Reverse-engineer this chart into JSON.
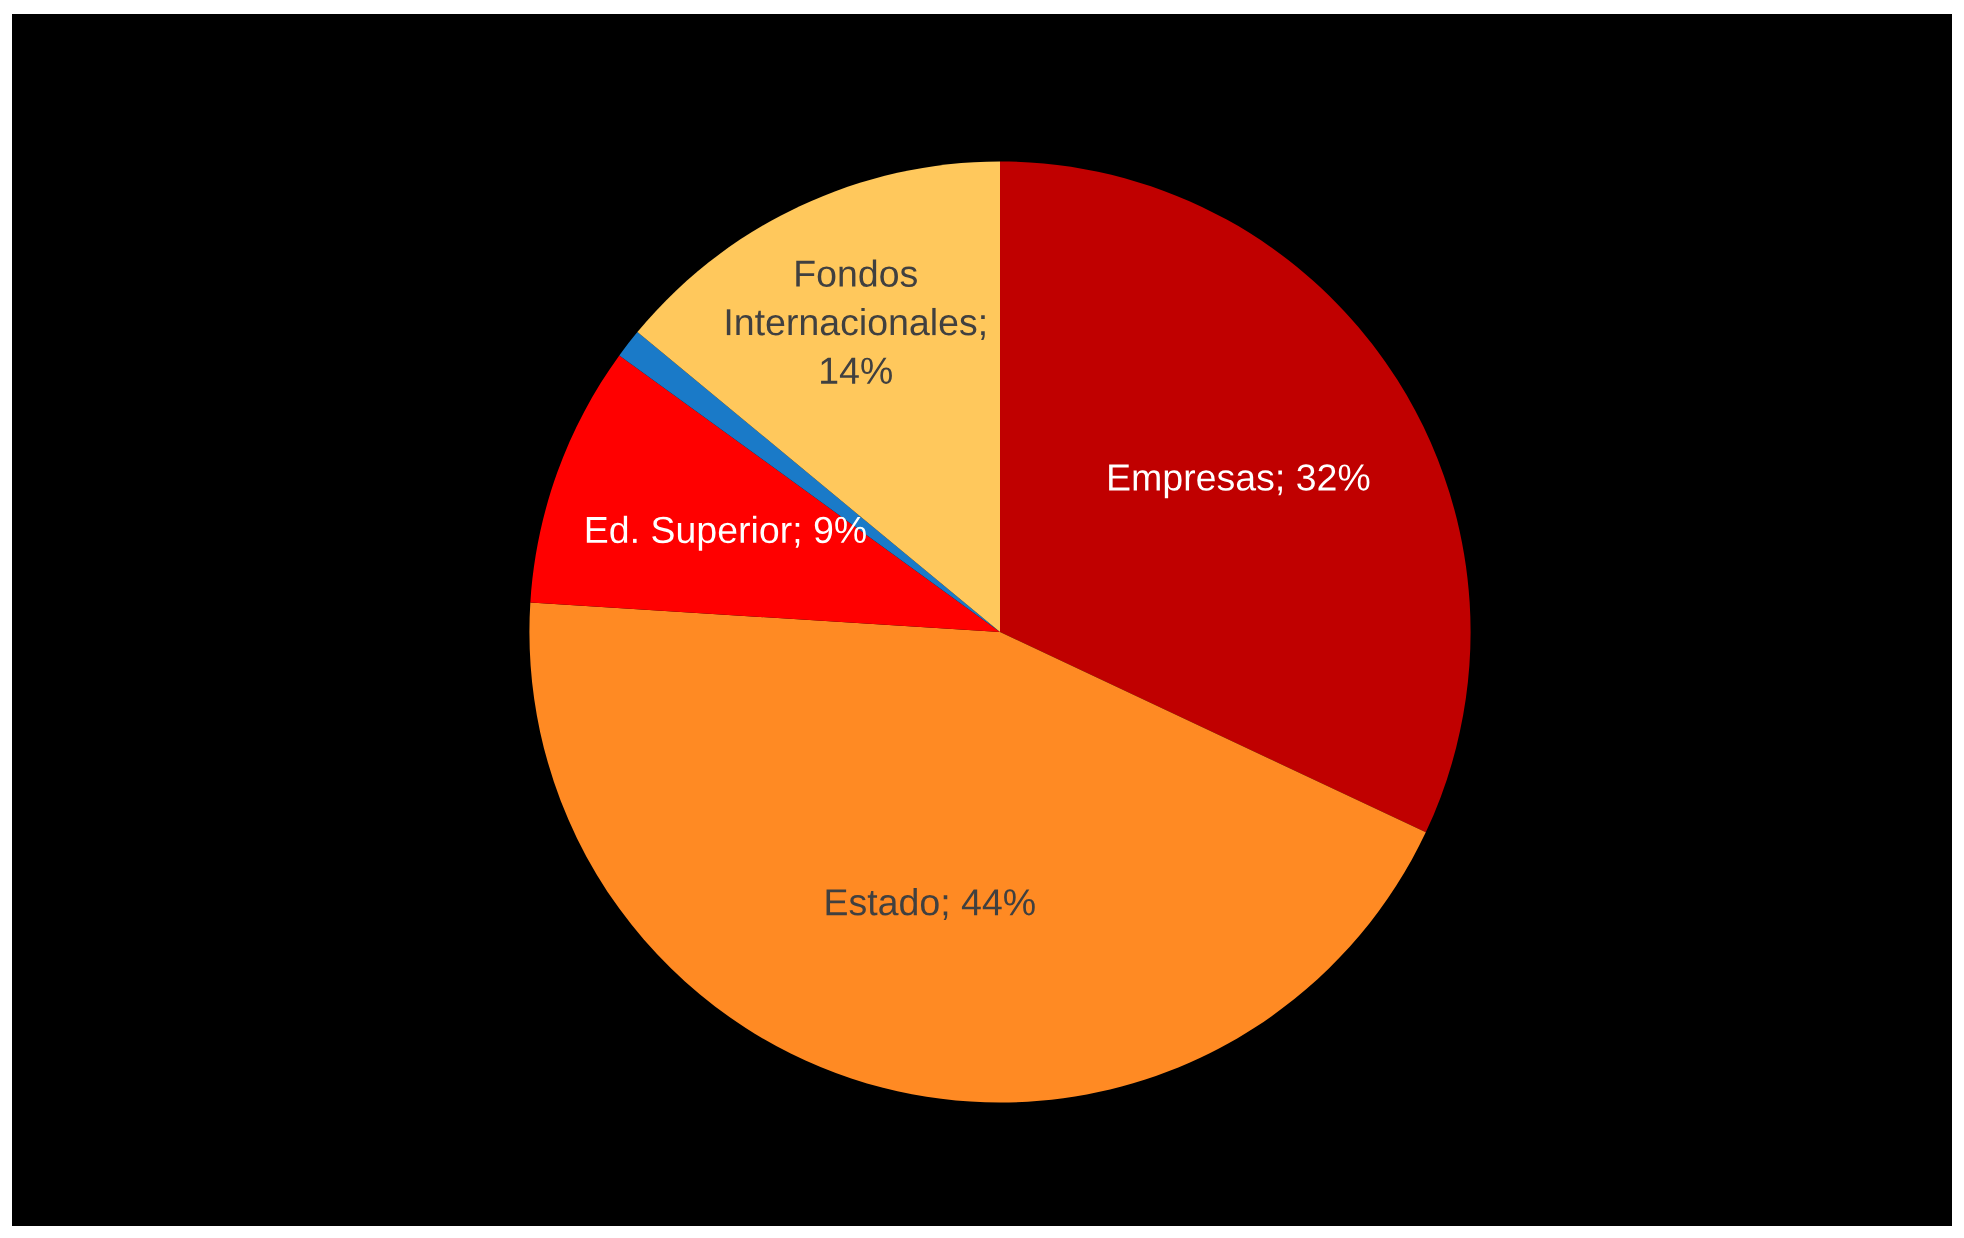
{
  "chart_data": {
    "type": "pie",
    "categories": [
      "Empresas; 32%",
      "Estado; 44%",
      "Ed. Superior; 9%",
      null,
      "Fondos\nInternacionales;\n14%"
    ],
    "values": [
      32,
      44,
      9,
      1,
      14
    ],
    "colors": [
      "#c00000",
      "#ff8a23",
      "#ff0000",
      "#1a7ac8",
      "#ffc85c"
    ],
    "legend": false
  }
}
